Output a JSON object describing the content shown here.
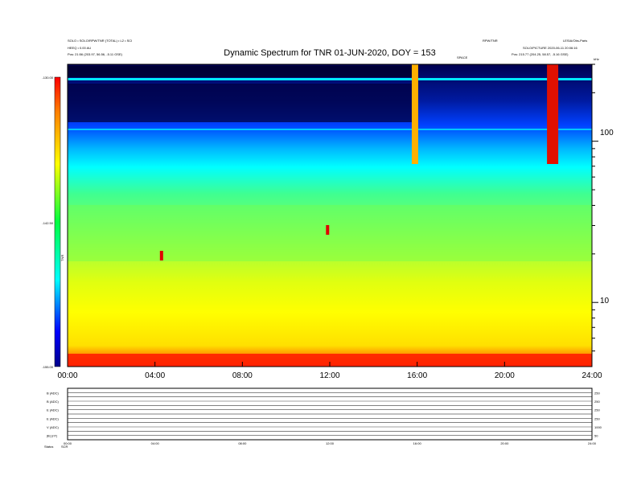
{
  "chart_data": {
    "type": "heatmap",
    "title": "Dynamic Spectrum for TNR 01-JUN-2020, DOY = 153",
    "header_left": [
      "SOLO • SOLO/RPW/TNR (TOTAL) • L2 • SCI",
      "HEEQ • 0.00 AU",
      "Pos:  21:56 (203.97, 56.56, -5.11 GSE)"
    ],
    "header_right": [
      "RPW/TNR",
      "LESIA/Obs-Paris",
      "SOLO/PICTURE 2020-06-11 20:06:16",
      "Pos:  215.77 (204.25, 58.57, -5.16 GSE)"
    ],
    "colorbar": {
      "label": "TNR",
      "ticks": [
        "-130.00",
        "-142.50",
        "-155.00"
      ],
      "range": [
        -155.0,
        -130.0
      ]
    },
    "x_axis": {
      "ticks": [
        "00:00",
        "04:00",
        "08:00",
        "12:00",
        "16:00",
        "20:00",
        "24:00"
      ],
      "range_hours": [
        0,
        24
      ]
    },
    "y_axis": {
      "scale": "log",
      "unit_label": "kHz",
      "ticks": [
        "100",
        "10"
      ],
      "range": [
        4,
        300
      ]
    },
    "annotation_top": "SPACE",
    "features": {
      "quiet_level_low_freq": -150,
      "background_plateau_freq_khz": 40,
      "type_iii_burst_hours": [
        15.9,
        22.2
      ],
      "spike_hours": [
        4.3,
        11.9
      ]
    },
    "panels": [
      {
        "label": "B (ADC)",
        "right_tick": "250"
      },
      {
        "label": "B (ADC)",
        "right_tick": "250"
      },
      {
        "label": "E (ADC)",
        "right_tick": "250"
      },
      {
        "label": "E (ADC)",
        "right_tick": "250"
      },
      {
        "label": "V (ADC)",
        "right_tick": "1000"
      },
      {
        "label": "|B| (nT)",
        "right_tick": "50"
      }
    ],
    "bottom_x_ticks": [
      "00:00",
      "04:00",
      "08:00",
      "12:00",
      "16:00",
      "20:00",
      "24:00"
    ],
    "footer": [
      "Status",
      "SCR"
    ],
    "side_label": "kHz"
  }
}
